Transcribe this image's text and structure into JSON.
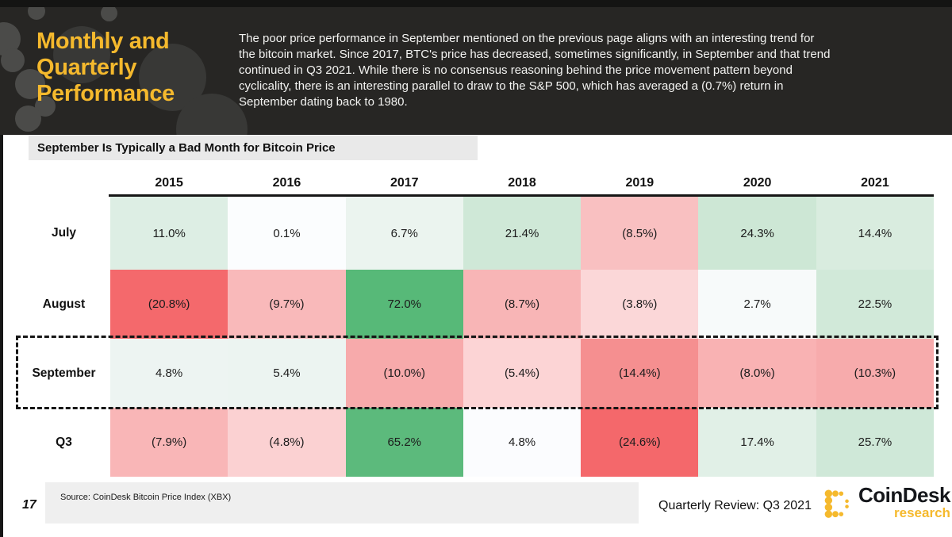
{
  "header": {
    "title": "Monthly and\nQuarterly\nPerformance",
    "paragraph": "The poor price performance in September mentioned on the previous page aligns with an interesting trend for\nthe bitcoin market. Since 2017, BTC's price has decreased, sometimes significantly, in September and that trend\ncontinued in Q3 2021. While there is no consensus reasoning behind the price movement pattern beyond\ncyclicality, there is an interesting parallel to draw to the S&P 500, which has averaged a (0.7%) return in\nSeptember dating back to 1980."
  },
  "section_title": "September Is Typically a Bad Month for Bitcoin Price",
  "chart_data": {
    "type": "heatmap",
    "title": "September Is Typically a Bad Month for Bitcoin Price",
    "columns": [
      "2015",
      "2016",
      "2017",
      "2018",
      "2019",
      "2020",
      "2021"
    ],
    "rows": [
      {
        "label": "July",
        "display": [
          "11.0%",
          "0.1%",
          "6.7%",
          "21.4%",
          "(8.5%)",
          "24.3%",
          "14.4%"
        ],
        "values": [
          11.0,
          0.1,
          6.7,
          21.4,
          -8.5,
          24.3,
          14.4
        ],
        "colors": [
          "#ddeee4",
          "#fbfdfe",
          "#ebf4ef",
          "#cfe8d7",
          "#f9c0c1",
          "#cde7d5",
          "#d9ecdf"
        ]
      },
      {
        "label": "August",
        "display": [
          "(20.8%)",
          "(9.7%)",
          "72.0%",
          "(8.7%)",
          "(3.8%)",
          "2.7%",
          "22.5%"
        ],
        "values": [
          -20.8,
          -9.7,
          72.0,
          -8.7,
          -3.8,
          2.7,
          22.5
        ],
        "colors": [
          "#f4696c",
          "#f9b9ba",
          "#57b978",
          "#f8b5b6",
          "#fbd7d8",
          "#f7fafa",
          "#d1e9d9"
        ]
      },
      {
        "label": "September",
        "display": [
          "4.8%",
          "5.4%",
          "(10.0%)",
          "(5.4%)",
          "(14.4%)",
          "(8.0%)",
          "(10.3%)"
        ],
        "values": [
          4.8,
          5.4,
          -10.0,
          -5.4,
          -14.4,
          -8.0,
          -10.3
        ],
        "colors": [
          "#edf4f2",
          "#ecf4f1",
          "#f7aaab",
          "#fcd4d5",
          "#f58f90",
          "#f9b2b3",
          "#f7abac"
        ]
      },
      {
        "label": "Q3",
        "display": [
          "(7.9%)",
          "(4.8%)",
          "65.2%",
          "4.8%",
          "(24.6%)",
          "17.4%",
          "25.7%"
        ],
        "values": [
          -7.9,
          -4.8,
          65.2,
          4.8,
          -24.6,
          17.4,
          25.7
        ],
        "colors": [
          "#f9b6b7",
          "#fbd1d2",
          "#5cba7c",
          "#fbfcfe",
          "#f4686b",
          "#e1f0e7",
          "#cfe8d8"
        ]
      }
    ],
    "highlighted_row": "September"
  },
  "footer": {
    "page_number": "17",
    "source": "Source: CoinDesk Bitcoin Price Index (XBX)",
    "review": "Quarterly Review: Q3 2021",
    "logo_name": "CoinDesk",
    "logo_sub": "research"
  },
  "theme": {
    "accent_yellow": "#F5B92D",
    "header_bg": "#272624",
    "positive_green": "#57b978",
    "negative_red": "#f4696c",
    "banner_gray": "#e9e9e9",
    "footer_gray": "#efefef"
  }
}
